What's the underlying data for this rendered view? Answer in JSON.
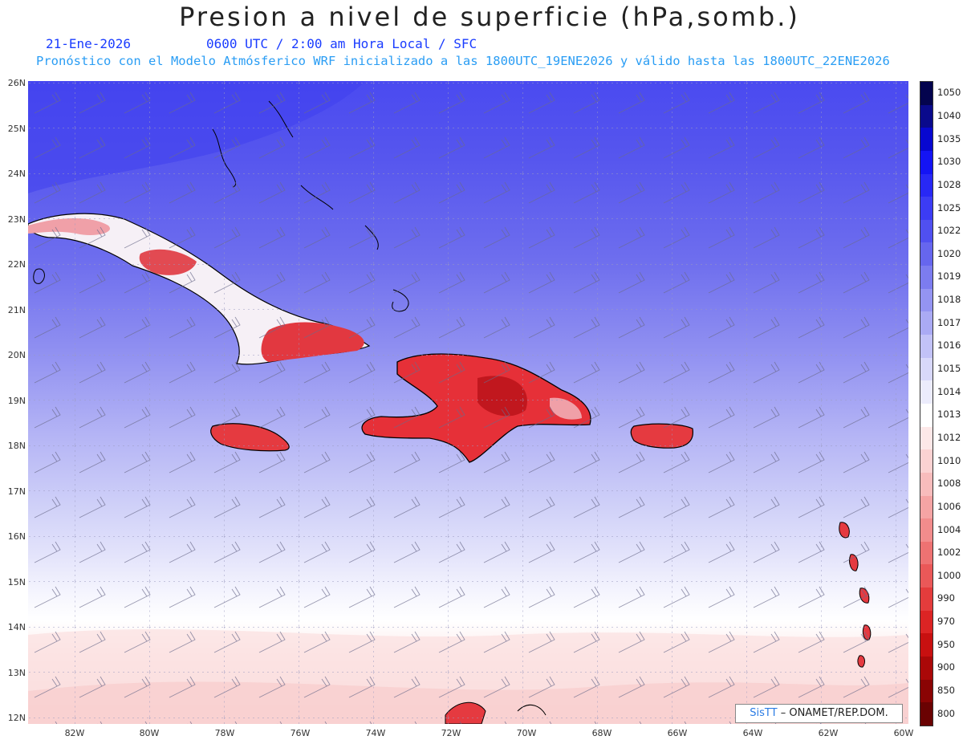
{
  "title": "Presion a nivel de superficie (hPa,somb.)",
  "date": "21-Ene-2026",
  "time": "0600 UTC / 2:00 am Hora Local / SFC",
  "forecast_info": "Pronóstico con el Modelo Atmósferico WRF inicializado a las 1800UTC_19ENE2026 y válido hasta las  1800UTC_22ENE2026",
  "lat_labels": [
    "26N",
    "25N",
    "24N",
    "23N",
    "22N",
    "21N",
    "20N",
    "19N",
    "18N",
    "17N",
    "16N",
    "15N",
    "14N",
    "13N",
    "12N"
  ],
  "lon_labels": [
    "82W",
    "80W",
    "78W",
    "76W",
    "74W",
    "72W",
    "70W",
    "68W",
    "66W",
    "64W",
    "62W",
    "60W"
  ],
  "colorbar": {
    "levels": [
      "1050",
      "1040",
      "1035",
      "1030",
      "1028",
      "1025",
      "1022",
      "1020",
      "1019",
      "1018",
      "1017",
      "1016",
      "1015",
      "1014",
      "1013",
      "1012",
      "1010",
      "1008",
      "1006",
      "1004",
      "1002",
      "1000",
      "990",
      "970",
      "950",
      "900",
      "850",
      "800"
    ],
    "colors": [
      "#04044e",
      "#0a0a8c",
      "#0808d0",
      "#1414f4",
      "#2828f5",
      "#3c3cf4",
      "#5050f0",
      "#6666ee",
      "#7c7cef",
      "#9494f2",
      "#aaaaf4",
      "#c2c2f7",
      "#d8d8fa",
      "#ececfc",
      "#ffffff",
      "#fde8e8",
      "#fbd2d2",
      "#f8bcbc",
      "#f5a4a4",
      "#f28c8c",
      "#ee7272",
      "#ea5858",
      "#e43c3c",
      "#dc2424",
      "#c81010",
      "#aa0808",
      "#8a0404",
      "#6a0202"
    ]
  },
  "credit": {
    "sis": "SisTT",
    "text": "– ONAMET/REP.DOM."
  }
}
